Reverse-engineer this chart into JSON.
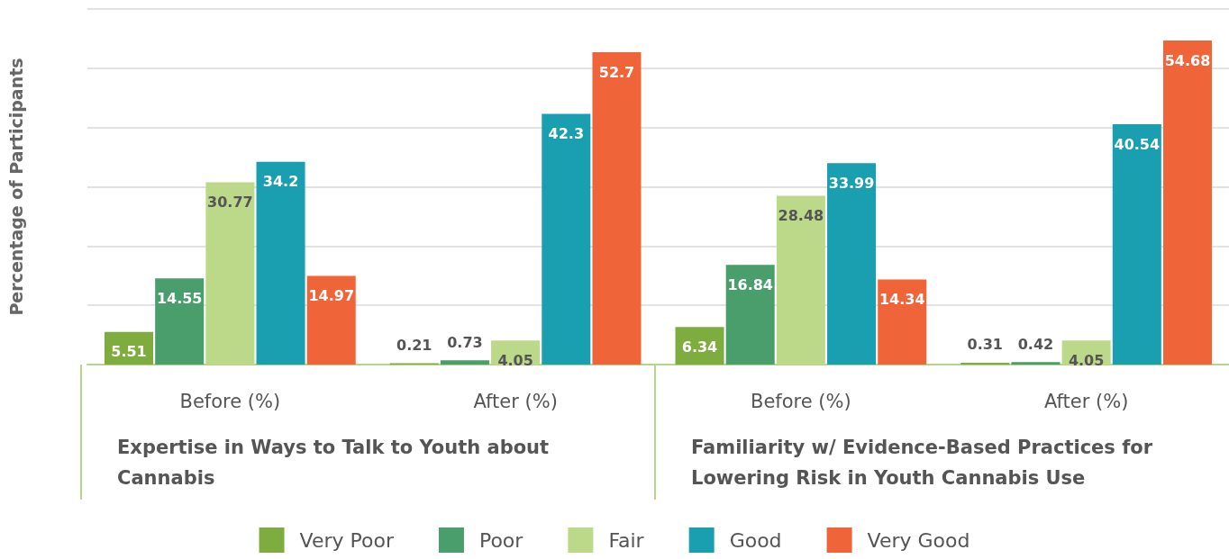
{
  "chart_data": {
    "type": "bar",
    "categories": [
      "Before (%)",
      "After (%)",
      "Before (%)",
      "After (%)"
    ],
    "ylabel": "Percentage of Participants",
    "ylim": [
      0,
      60
    ],
    "yticks": [
      {
        "value": 0,
        "label": null
      },
      {
        "value": 10,
        "label": null
      },
      {
        "value": 20,
        "label": null
      },
      {
        "value": 30,
        "label": null
      },
      {
        "value": 40,
        "label": null
      },
      {
        "value": 50,
        "label": null
      },
      {
        "value": 60,
        "label": null
      }
    ],
    "tick_labels": "x",
    "grid": "y",
    "legend": "bottom",
    "data_labels": true,
    "annotations": [
      "Expertise in Ways to Talk to Youth about Cannabis",
      "Familiarity w/ Evidence-Based Practices for Lowering Risk in Youth Cannabis Use"
    ],
    "series": [
      {
        "name": "Very Poor",
        "color": "#7fac3f",
        "values": [
          5.51,
          0.21,
          6.34,
          0.31
        ]
      },
      {
        "name": "Poor",
        "color": "#4a9e6b",
        "values": [
          14.55,
          0.73,
          16.84,
          0.42
        ]
      },
      {
        "name": "Fair",
        "color": "#bcd98a",
        "values": [
          30.77,
          4.05,
          28.48,
          4.05
        ]
      },
      {
        "name": "Good",
        "color": "#1a9fb0",
        "values": [
          34.2,
          42.3,
          33.99,
          40.54
        ]
      },
      {
        "name": "Very Good",
        "color": "#f0643a",
        "values": [
          14.97,
          52.7,
          14.34,
          54.68
        ]
      }
    ]
  }
}
